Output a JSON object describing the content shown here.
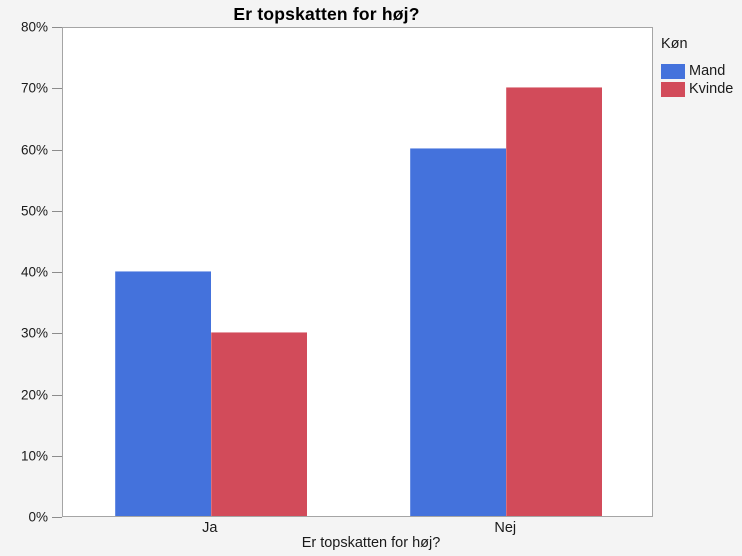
{
  "chart_data": {
    "type": "bar",
    "title": "Er topskatten for høj?",
    "xlabel": "Er topskatten for høj?",
    "ylabel": "",
    "categories": [
      "Ja",
      "Nej"
    ],
    "series": [
      {
        "name": "Mand",
        "color": "#4472DC",
        "values": [
          40,
          60
        ]
      },
      {
        "name": "Kvinde",
        "color": "#D24B5A",
        "values": [
          30,
          70
        ]
      }
    ],
    "ylim": [
      0,
      80
    ],
    "ytick_step": 10,
    "ytick_labels": [
      "0%",
      "10%",
      "20%",
      "30%",
      "40%",
      "50%",
      "60%",
      "70%",
      "80%"
    ],
    "legend_title": "Køn",
    "legend_position": "right",
    "grid": false,
    "colors": {
      "background": "#f4f4f4",
      "plot_background": "#ffffff",
      "plot_border": "#a5a5a5",
      "mand": "#4472DC",
      "kvinde": "#D24B5A"
    }
  }
}
